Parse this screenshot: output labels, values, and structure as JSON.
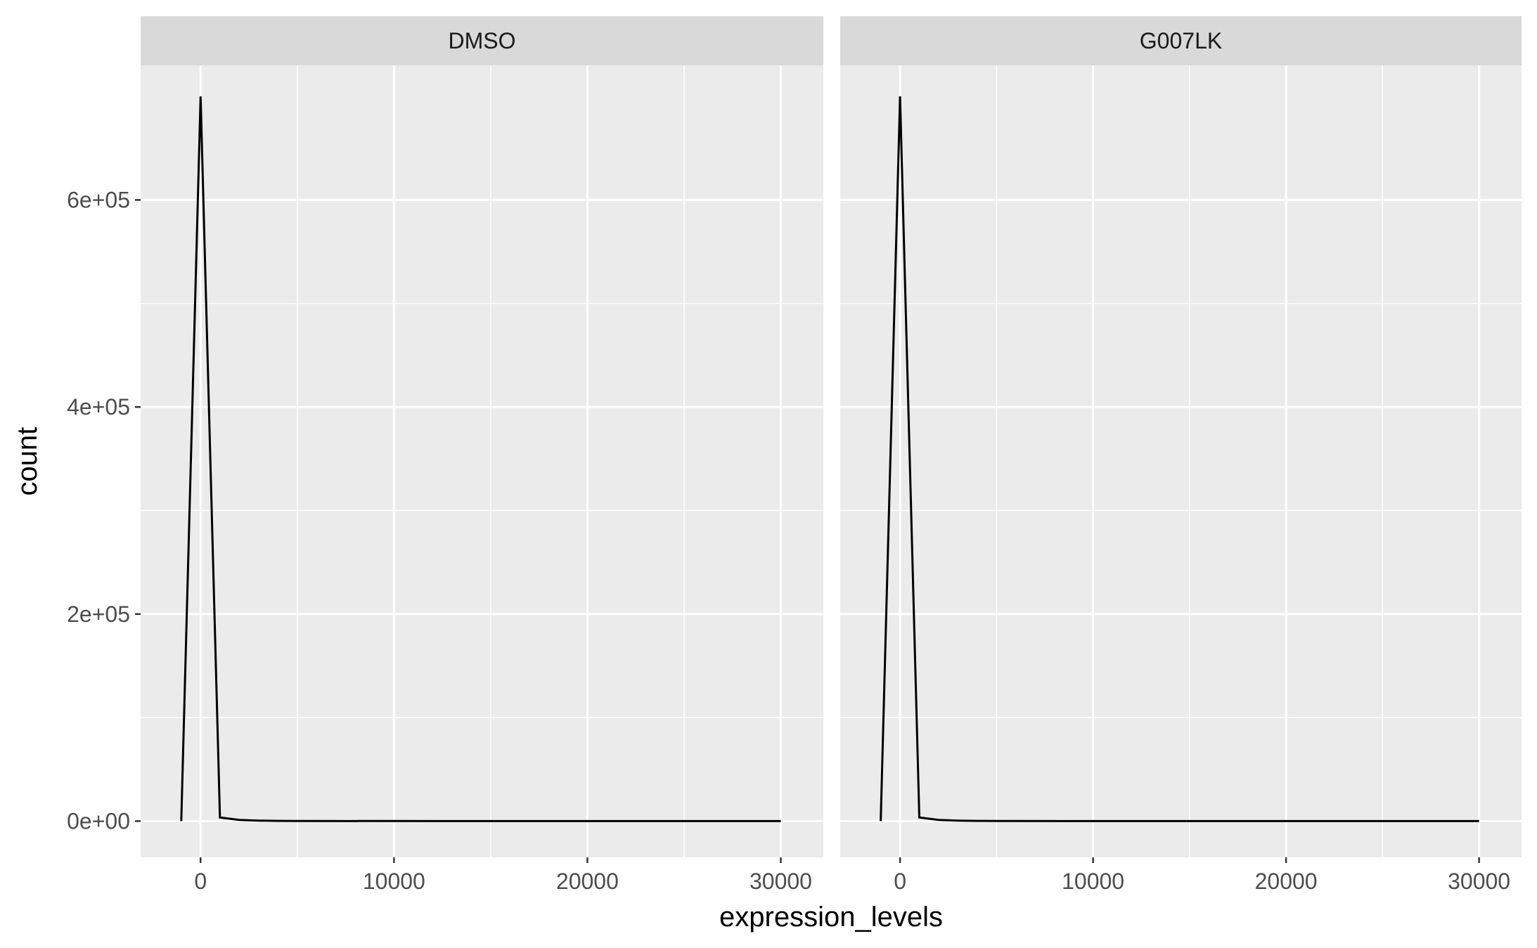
{
  "chart_data": {
    "type": "line",
    "facets": [
      "DMSO",
      "G007LK"
    ],
    "xlabel": "expression_levels",
    "ylabel": "count",
    "xlim": [
      -3100,
      32200
    ],
    "ylim": [
      -35000,
      730000
    ],
    "x_ticks": [
      0,
      10000,
      20000,
      30000
    ],
    "x_tick_labels": [
      "0",
      "10000",
      "20000",
      "30000"
    ],
    "y_ticks": [
      0,
      200000,
      400000,
      600000
    ],
    "y_tick_labels": [
      "0e+00",
      "2e+05",
      "4e+05",
      "6e+05"
    ],
    "grid": true,
    "series": [
      {
        "facet": "DMSO",
        "x": [
          -1000,
          0,
          1000,
          2000,
          3000,
          4000,
          5000,
          30000
        ],
        "y": [
          0,
          700000,
          3500,
          1200,
          500,
          250,
          100,
          0
        ]
      },
      {
        "facet": "G007LK",
        "x": [
          -1000,
          0,
          1000,
          2000,
          3000,
          4000,
          5000,
          30000
        ],
        "y": [
          0,
          700000,
          3500,
          1200,
          500,
          250,
          100,
          0
        ]
      }
    ]
  },
  "colors": {
    "panel_background": "#ebebeb",
    "strip_background": "#d9d9d9",
    "grid_line": "#ffffff",
    "data_line": "#000000",
    "tick_mark": "#333333"
  }
}
